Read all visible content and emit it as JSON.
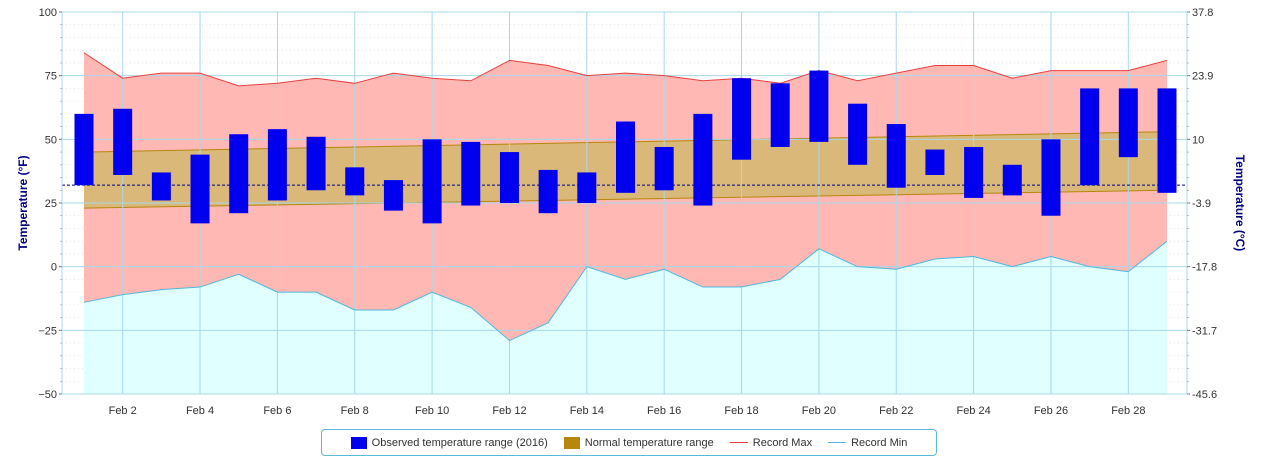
{
  "chart_data": {
    "type": "bar",
    "left_axis": {
      "title": "Temperature (°F)",
      "ylim": [
        -50,
        100
      ],
      "ticks": [
        "100",
        "75",
        "50",
        "25",
        "0",
        "−25",
        "−50"
      ],
      "tick_values": [
        100,
        75,
        50,
        25,
        0,
        -25,
        -50
      ]
    },
    "right_axis": {
      "title": "Temperature (°C)",
      "ticks": [
        "37.8",
        "23.9",
        "10",
        "-3.9",
        "-17.8",
        "-31.7",
        "-45.6"
      ]
    },
    "x_axis": {
      "days": [
        1,
        29
      ],
      "tick_days": [
        2,
        4,
        6,
        8,
        10,
        12,
        14,
        16,
        18,
        20,
        22,
        24,
        26,
        28
      ],
      "tick_labels": [
        "Feb 2",
        "Feb 4",
        "Feb 6",
        "Feb 8",
        "Feb 10",
        "Feb 12",
        "Feb 14",
        "Feb 16",
        "Feb 18",
        "Feb 20",
        "Feb 22",
        "Feb 24",
        "Feb 26",
        "Feb 28"
      ]
    },
    "freezing_line": 32,
    "grid": true,
    "legend_position": "bottom-center",
    "colors": {
      "observed": "#0000ee",
      "normal_fill": "#d9b87a",
      "normal_line": "#b8860b",
      "record_max": "#e84040",
      "record_max_fill": "#ffb8b4",
      "record_min": "#50b8e0",
      "record_min_fill": "#e0ffff",
      "freezing": "#000080",
      "grid": "#a8d8e8"
    },
    "series": [
      {
        "name": "Observed temperature range (2016)",
        "days": [
          1,
          2,
          3,
          4,
          5,
          6,
          7,
          8,
          9,
          10,
          11,
          12,
          13,
          14,
          15,
          16,
          17,
          18,
          19,
          20,
          21,
          22,
          23,
          24,
          25,
          26,
          27,
          28,
          29
        ],
        "low": [
          32,
          36,
          26,
          17,
          21,
          26,
          30,
          28,
          22,
          17,
          24,
          25,
          21,
          25,
          29,
          30,
          24,
          42,
          47,
          49,
          40,
          31,
          36,
          27,
          28,
          20,
          32,
          43,
          29
        ],
        "high": [
          60,
          62,
          37,
          44,
          52,
          54,
          51,
          39,
          34,
          50,
          49,
          45,
          38,
          37,
          57,
          47,
          60,
          74,
          72,
          77,
          64,
          56,
          46,
          47,
          40,
          50,
          70,
          70,
          70
        ]
      },
      {
        "name": "Normal temperature range",
        "days": [
          1,
          29
        ],
        "low": [
          23,
          30
        ],
        "high": [
          45,
          53
        ]
      },
      {
        "name": "Record Max",
        "days": [
          1,
          2,
          3,
          4,
          5,
          6,
          7,
          8,
          9,
          10,
          11,
          12,
          13,
          14,
          15,
          16,
          17,
          18,
          19,
          20,
          21,
          22,
          23,
          24,
          25,
          26,
          27,
          28,
          29
        ],
        "values": [
          84,
          74,
          76,
          76,
          71,
          72,
          74,
          72,
          76,
          74,
          73,
          81,
          79,
          75,
          76,
          75,
          73,
          74,
          72,
          77,
          73,
          76,
          79,
          79,
          74,
          77,
          77,
          77,
          81
        ]
      },
      {
        "name": "Record Min",
        "days": [
          1,
          2,
          3,
          4,
          5,
          6,
          7,
          8,
          9,
          10,
          11,
          12,
          13,
          14,
          15,
          16,
          17,
          18,
          19,
          20,
          21,
          22,
          23,
          24,
          25,
          26,
          27,
          28,
          29
        ],
        "values": [
          -14,
          -11,
          -9,
          -8,
          -3,
          -10,
          -10,
          -17,
          -17,
          -10,
          -16,
          -29,
          -22,
          0,
          -5,
          -1,
          -8,
          -8,
          -5,
          7,
          0,
          -1,
          3,
          4,
          0,
          4,
          0,
          -2,
          10
        ]
      }
    ]
  }
}
